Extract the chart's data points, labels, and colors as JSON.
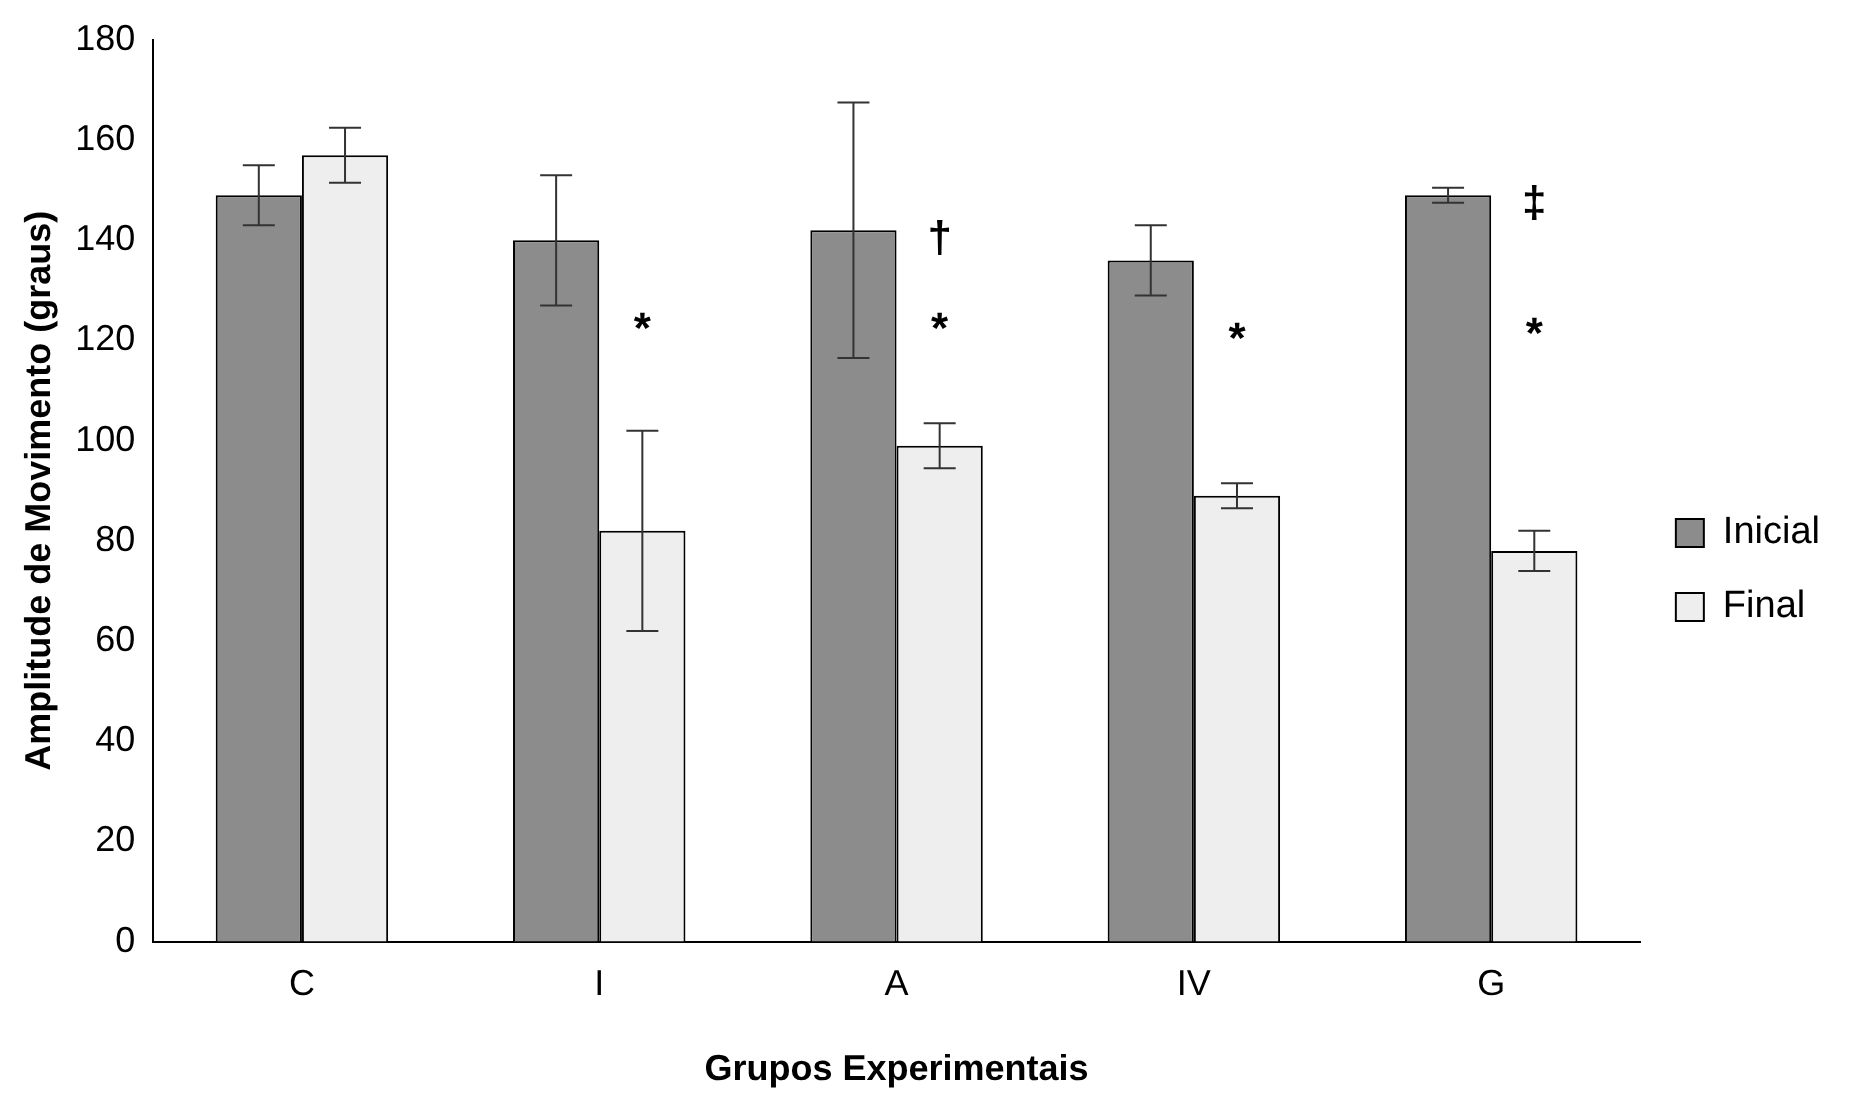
{
  "chart_data": {
    "type": "bar",
    "xlabel": "Grupos Experimentais",
    "ylabel": "Amplitude de Movimento (graus)",
    "categories": [
      "C",
      "I",
      "A",
      "IV",
      "G"
    ],
    "series": [
      {
        "name": "Inicial",
        "color": "#8c8c8c",
        "values": [
          149,
          140,
          142,
          136,
          149
        ],
        "errors": [
          6,
          13,
          25.5,
          7,
          1.5
        ]
      },
      {
        "name": "Final",
        "color": "#eeeeee",
        "values": [
          157,
          82,
          99,
          89,
          78
        ],
        "errors": [
          5.5,
          20,
          4.5,
          2.5,
          4
        ]
      }
    ],
    "ylim": [
      0,
      180
    ],
    "yticks": [
      0,
      20,
      40,
      60,
      80,
      100,
      120,
      140,
      160,
      180
    ],
    "grid": false,
    "legend": "right",
    "annotations": [
      {
        "text": "*",
        "x": "I",
        "y": 122
      },
      {
        "text": "*",
        "x": "A",
        "y": 122
      },
      {
        "text": "*",
        "x": "IV",
        "y": 120
      },
      {
        "text": "*",
        "x": "G",
        "y": 121
      },
      {
        "text": "†",
        "x": "A",
        "y": 140
      },
      {
        "text": "‡",
        "x": "G",
        "y": 147
      }
    ]
  }
}
